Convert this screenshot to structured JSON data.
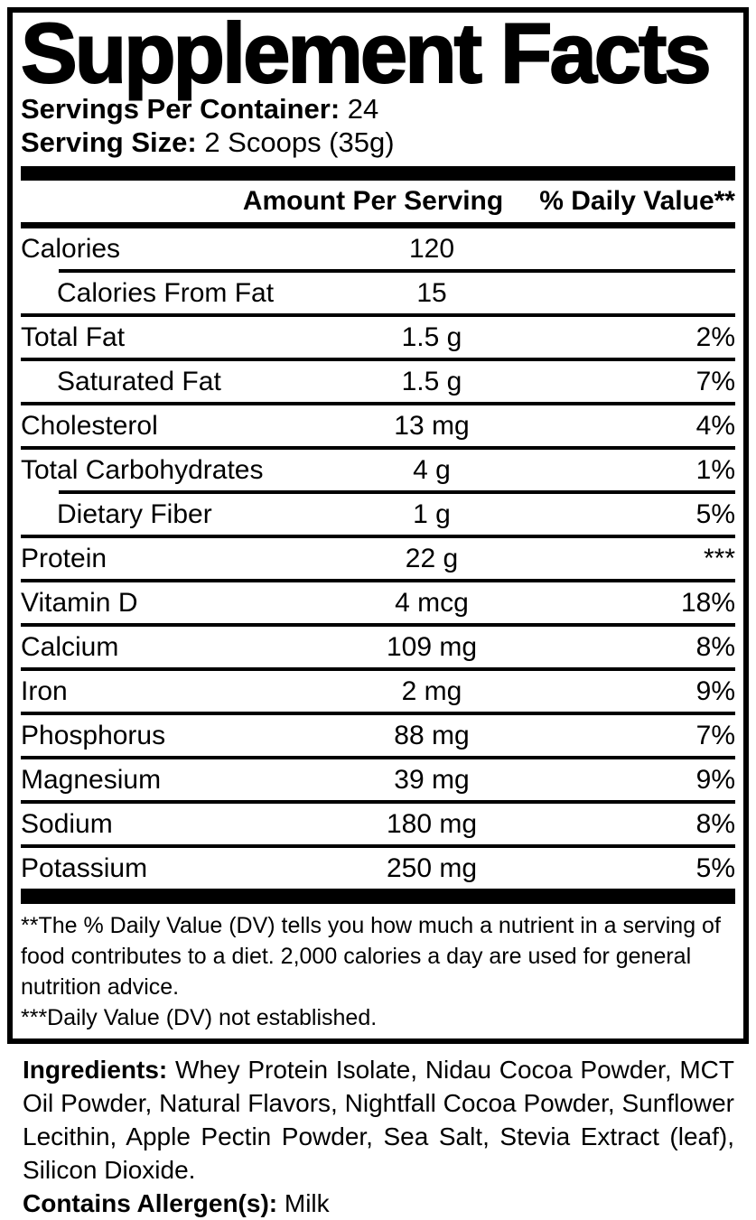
{
  "label": {
    "title": "Supplement Facts",
    "servings_per_container_label": "Servings Per Container:",
    "servings_per_container_value": "24",
    "serving_size_label": "Serving Size:",
    "serving_size_value": "2 Scoops (35g)",
    "columns": {
      "amount_header": "Amount Per Serving",
      "dv_header": "% Daily Value**"
    },
    "rows": [
      {
        "name": "Calories",
        "amount": "120",
        "dv": ""
      },
      {
        "name": "Calories From Fat",
        "amount": "15",
        "dv": ""
      },
      {
        "name": "Total Fat",
        "amount": "1.5 g",
        "dv": "2%"
      },
      {
        "name": "Saturated Fat",
        "amount": "1.5 g",
        "dv": "7%"
      },
      {
        "name": "Cholesterol",
        "amount": "13 mg",
        "dv": "4%"
      },
      {
        "name": "Total Carbohydrates",
        "amount": "4 g",
        "dv": "1%"
      },
      {
        "name": "Dietary Fiber",
        "amount": "1 g",
        "dv": "5%"
      },
      {
        "name": "Protein",
        "amount": "22 g",
        "dv": "***"
      },
      {
        "name": "Vitamin D",
        "amount": "4 mcg",
        "dv": "18%"
      },
      {
        "name": "Calcium",
        "amount": "109 mg",
        "dv": "8%"
      },
      {
        "name": "Iron",
        "amount": "2 mg",
        "dv": "9%"
      },
      {
        "name": "Phosphorus",
        "amount": "88 mg",
        "dv": "7%"
      },
      {
        "name": "Magnesium",
        "amount": "39 mg",
        "dv": "9%"
      },
      {
        "name": "Sodium",
        "amount": "180 mg",
        "dv": "8%"
      },
      {
        "name": "Potassium",
        "amount": "250 mg",
        "dv": "5%"
      }
    ],
    "footnotes": [
      "**The % Daily Value (DV) tells you how much a nutrient in a serving of food contributes to a diet. 2,000 calories a day are used for general nutrition advice.",
      "***Daily Value (DV) not established."
    ],
    "ingredients_label": "Ingredients:",
    "ingredients_text": "Whey Protein Isolate, Nidau Cocoa Powder, MCT Oil Powder, Natural Flavors, Nightfall Cocoa Powder, Sunflower Lecithin, Apple Pectin Powder, Sea Salt, Stevia Extract (leaf), Silicon Dioxide.",
    "allergen_label": "Contains Allergen(s):",
    "allergen_value": "Milk",
    "colors": {
      "text": "#000000",
      "background": "#ffffff"
    }
  }
}
